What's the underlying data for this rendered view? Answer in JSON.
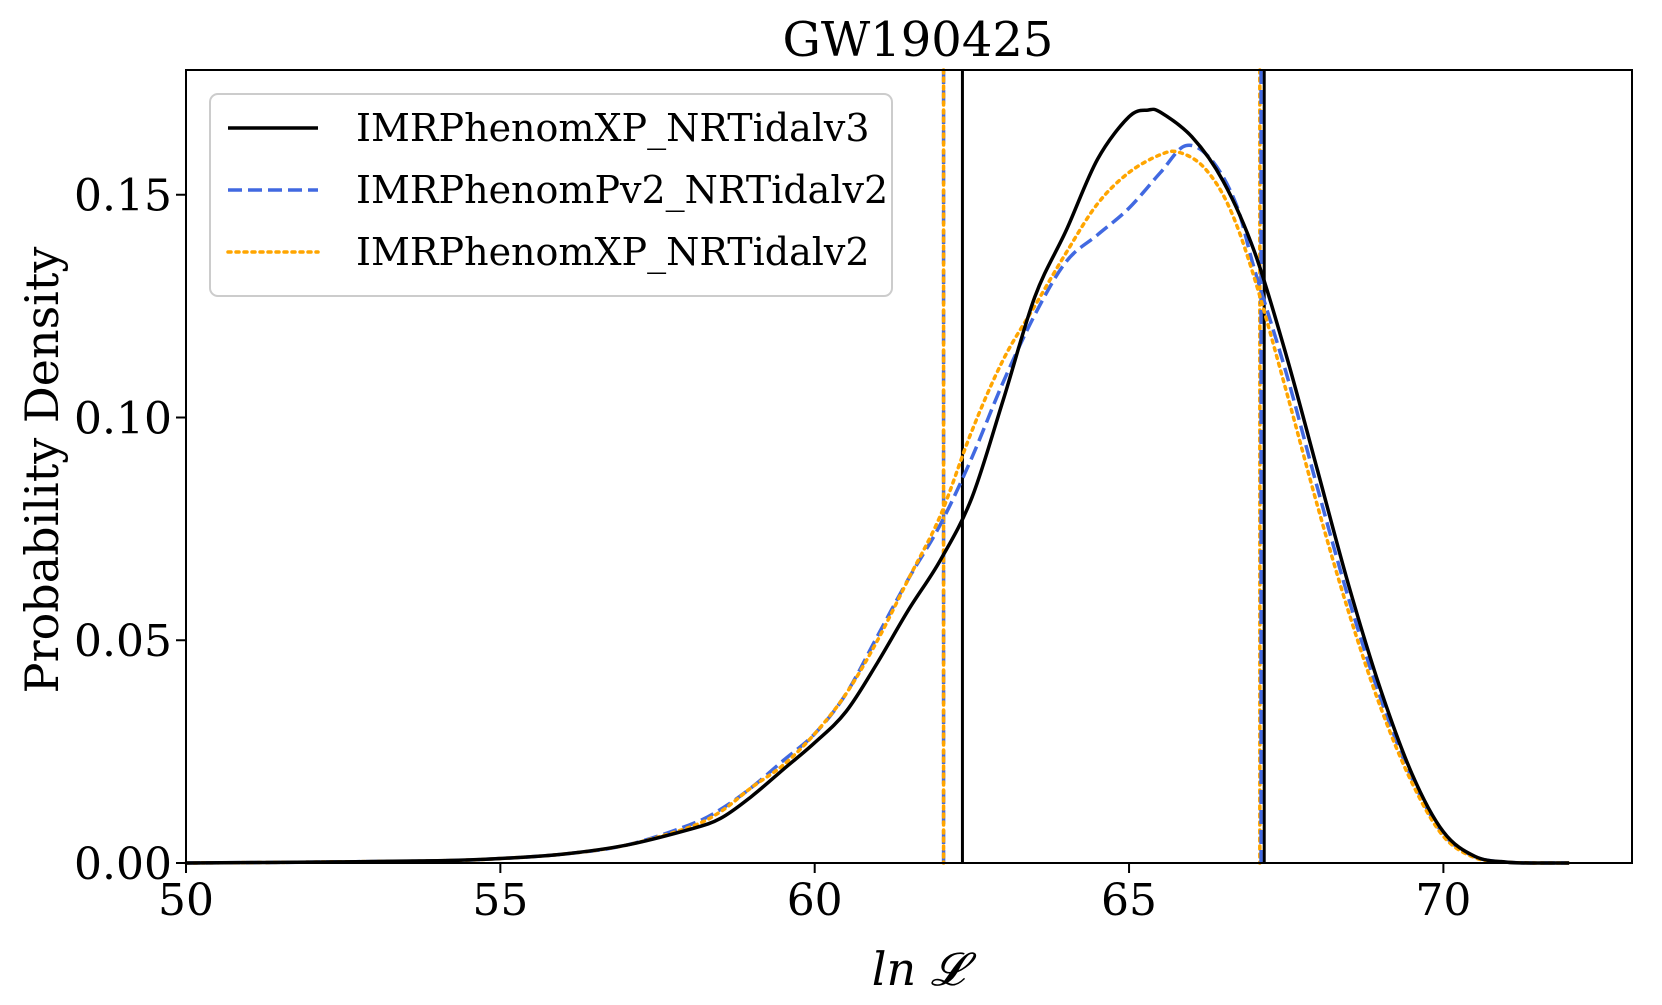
{
  "chart_data": {
    "type": "line",
    "title": "GW190425",
    "xlabel": "ln 𝓛",
    "ylabel": "Probability Density",
    "xlim": [
      50,
      73
    ],
    "ylim": [
      0,
      0.178
    ],
    "xticks": [
      50,
      55,
      60,
      65,
      70
    ],
    "xtick_labels": [
      "50",
      "55",
      "60",
      "65",
      "70"
    ],
    "yticks": [
      0,
      0.05,
      0.1,
      0.15
    ],
    "ytick_labels": [
      "0.00",
      "0.05",
      "0.10",
      "0.15"
    ],
    "grid": false,
    "legend_position": "top-left",
    "series": [
      {
        "name": "IMRPhenomXP_NRTidalv3",
        "color": "#000000",
        "style": "solid",
        "x": [
          50,
          52,
          54,
          55,
          56,
          57,
          58,
          58.5,
          59,
          59.5,
          60,
          60.5,
          61,
          61.5,
          62,
          62.5,
          63,
          63.5,
          64,
          64.5,
          65,
          65.3,
          65.5,
          66,
          66.5,
          67,
          67.5,
          68,
          68.5,
          69,
          69.5,
          70,
          70.5,
          71,
          71.5,
          72
        ],
        "y": [
          0.0,
          0.0002,
          0.0005,
          0.001,
          0.002,
          0.004,
          0.0075,
          0.01,
          0.015,
          0.021,
          0.027,
          0.034,
          0.045,
          0.057,
          0.068,
          0.082,
          0.104,
          0.127,
          0.142,
          0.158,
          0.1675,
          0.169,
          0.1685,
          0.163,
          0.153,
          0.137,
          0.114,
          0.088,
          0.062,
          0.039,
          0.02,
          0.007,
          0.0015,
          0.0002,
          0.0,
          0.0
        ]
      },
      {
        "name": "IMRPhenomPv2_NRTidalv2",
        "color": "#4169e1",
        "style": "dashed",
        "x": [
          50,
          52,
          54,
          55,
          56,
          57,
          58,
          58.5,
          59,
          59.5,
          60,
          60.5,
          61,
          61.5,
          62,
          62.5,
          63,
          63.5,
          64,
          64.5,
          65,
          65.5,
          65.9,
          66.3,
          66.7,
          67,
          67.5,
          68,
          68.5,
          69,
          69.5,
          70,
          70.5,
          71,
          71.5,
          72
        ],
        "y": [
          0.0,
          0.0002,
          0.0005,
          0.001,
          0.002,
          0.004,
          0.0085,
          0.012,
          0.017,
          0.023,
          0.029,
          0.038,
          0.051,
          0.064,
          0.076,
          0.091,
          0.108,
          0.123,
          0.135,
          0.141,
          0.147,
          0.155,
          0.161,
          0.158,
          0.148,
          0.133,
          0.11,
          0.084,
          0.059,
          0.037,
          0.019,
          0.0065,
          0.0014,
          0.0002,
          0.0,
          0.0
        ]
      },
      {
        "name": "IMRPhenomXP_NRTidalv2",
        "color": "#ffa500",
        "style": "dotted",
        "x": [
          50,
          52,
          54,
          55,
          56,
          57,
          58,
          58.5,
          59,
          59.5,
          60,
          60.5,
          61,
          61.5,
          62,
          62.5,
          63,
          63.5,
          64,
          64.5,
          65,
          65.5,
          65.8,
          66.2,
          66.6,
          67,
          67.5,
          68,
          68.5,
          69,
          69.5,
          70,
          70.5,
          71,
          71.5,
          72
        ],
        "y": [
          0.0,
          0.0002,
          0.0005,
          0.001,
          0.002,
          0.004,
          0.008,
          0.0115,
          0.017,
          0.022,
          0.029,
          0.038,
          0.05,
          0.064,
          0.078,
          0.097,
          0.113,
          0.125,
          0.137,
          0.148,
          0.155,
          0.159,
          0.1595,
          0.156,
          0.147,
          0.131,
          0.106,
          0.08,
          0.056,
          0.035,
          0.018,
          0.006,
          0.0012,
          0.0002,
          0.0,
          0.0
        ]
      }
    ],
    "vlines": [
      {
        "x": 62.05,
        "color": "#4169e1",
        "style": "dashed"
      },
      {
        "x": 62.05,
        "color": "#ffa500",
        "style": "dotted"
      },
      {
        "x": 62.35,
        "color": "#000000",
        "style": "solid"
      },
      {
        "x": 67.08,
        "color": "#ffa500",
        "style": "dotted"
      },
      {
        "x": 67.1,
        "color": "#4169e1",
        "style": "dashed"
      },
      {
        "x": 67.15,
        "color": "#000000",
        "style": "solid"
      }
    ]
  }
}
